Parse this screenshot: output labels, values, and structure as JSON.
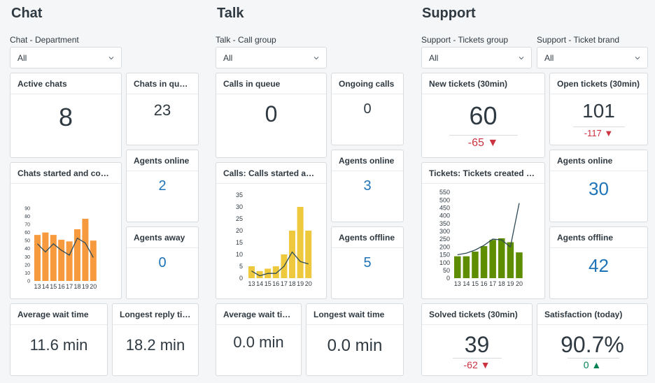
{
  "sections": {
    "chat": {
      "title": "Chat",
      "filter_label": "Chat - Department",
      "filter_value": "All",
      "active_chats": {
        "label": "Active chats",
        "value": "8"
      },
      "chats_in_queue": {
        "label": "Chats in queue",
        "value": "23"
      },
      "agents_online": {
        "label": "Agents online",
        "value": "2"
      },
      "agents_away": {
        "label": "Agents away",
        "value": "0"
      },
      "chart_title": "Chats started and compl...",
      "avg_wait": {
        "label": "Average wait time",
        "value": "11.6 min"
      },
      "longest_reply": {
        "label": "Longest reply time",
        "value": "18.2 min"
      }
    },
    "talk": {
      "title": "Talk",
      "filter_label": "Talk - Call group",
      "filter_value": "All",
      "calls_in_queue": {
        "label": "Calls in queue",
        "value": "0"
      },
      "ongoing_calls": {
        "label": "Ongoing calls",
        "value": "0"
      },
      "agents_online": {
        "label": "Agents online",
        "value": "3"
      },
      "agents_offline": {
        "label": "Agents offline",
        "value": "5"
      },
      "chart_title": "Calls: Calls started and c...",
      "avg_wait": {
        "label": "Average wait time",
        "value": "0.0 min"
      },
      "longest_wait": {
        "label": "Longest wait time",
        "value": "0.0 min"
      }
    },
    "support": {
      "title": "Support",
      "filter1_label": "Support - Tickets group",
      "filter1_value": "All",
      "filter2_label": "Support - Ticket brand",
      "filter2_value": "All",
      "new_tickets": {
        "label": "New tickets (30min)",
        "value": "60",
        "delta": "-65",
        "direction": "down"
      },
      "open_tickets": {
        "label": "Open tickets (30min)",
        "value": "101",
        "delta": "-117",
        "direction": "down"
      },
      "agents_online": {
        "label": "Agents online",
        "value": "30"
      },
      "agents_offline": {
        "label": "Agents offline",
        "value": "42"
      },
      "chart_title": "Tickets: Tickets created and ...",
      "solved_tickets": {
        "label": "Solved tickets (30min)",
        "value": "39",
        "delta": "-62",
        "direction": "down"
      },
      "satisfaction": {
        "label": "Satisfaction (today)",
        "value": "90.7%",
        "delta": "0",
        "direction": "up"
      }
    }
  },
  "colors": {
    "chat_bar": "#f79a3e",
    "talk_bar": "#efc93d",
    "support_bar": "#5f8d00",
    "line": "#2e4b57",
    "blue": "#1f73b7",
    "red": "#cc3340",
    "green": "#038153"
  },
  "chart_data": [
    {
      "type": "bar",
      "categories": [
        "13",
        "14",
        "15",
        "16",
        "17",
        "18",
        "19",
        "20"
      ],
      "series": [
        {
          "values": [
            57,
            60,
            57,
            51,
            49,
            64,
            77,
            50
          ]
        },
        {
          "values": [
            46,
            36,
            46,
            38,
            32,
            53,
            47,
            29
          ]
        }
      ],
      "ylim": [
        0,
        90
      ],
      "yticks": [
        "0",
        "10",
        "20",
        "30",
        "40",
        "50",
        "60",
        "70",
        "80",
        "90"
      ]
    },
    {
      "type": "bar",
      "categories": [
        "13",
        "14",
        "15",
        "16",
        "17",
        "18",
        "19",
        "20"
      ],
      "series": [
        {
          "values": [
            5,
            3,
            4,
            5,
            10,
            20,
            30,
            20
          ]
        },
        {
          "values": [
            3,
            1,
            2,
            2,
            5,
            11,
            7,
            6
          ]
        }
      ],
      "ylim": [
        0,
        35
      ],
      "yticks": [
        "0",
        "5",
        "10",
        "15",
        "20",
        "25",
        "30",
        "35"
      ]
    },
    {
      "type": "bar",
      "categories": [
        "13",
        "14",
        "15",
        "16",
        "17",
        "18",
        "19",
        "20"
      ],
      "series": [
        {
          "values": [
            140,
            140,
            170,
            205,
            245,
            255,
            230,
            165
          ]
        },
        {
          "values": [
            150,
            160,
            180,
            210,
            250,
            245,
            200,
            480
          ]
        }
      ],
      "ylim": [
        0,
        550
      ],
      "yticks": [
        "0",
        "50",
        "100",
        "150",
        "200",
        "250",
        "300",
        "350",
        "400",
        "450",
        "500",
        "550"
      ]
    }
  ]
}
